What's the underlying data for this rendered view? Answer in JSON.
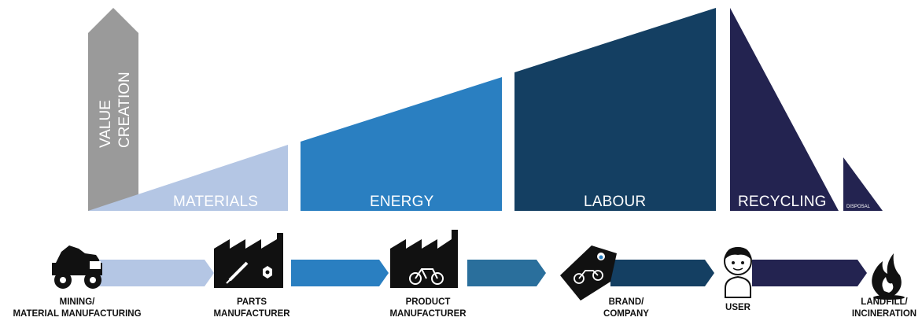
{
  "axis": {
    "line1": "VALUE",
    "line2": "CREATION",
    "color": "#9a9a9a"
  },
  "segments": [
    {
      "label": "MATERIALS",
      "color": "#b4c6e4"
    },
    {
      "label": "ENERGY",
      "color": "#2a7fc1"
    },
    {
      "label": "LABOUR",
      "color": "#143f62"
    },
    {
      "label": "RECYCLING",
      "color": "#232350"
    },
    {
      "label": "DISPOSAL",
      "color": "#232350"
    }
  ],
  "stages": [
    {
      "line1": "MINING/",
      "line2": "MATERIAL MANUFACTURING",
      "icon": "mining-truck-icon"
    },
    {
      "line1": "PARTS",
      "line2": "MANUFACTURER",
      "icon": "factory-parts-icon"
    },
    {
      "line1": "PRODUCT",
      "line2": "MANUFACTURER",
      "icon": "factory-bicycle-icon"
    },
    {
      "line1": "BRAND/",
      "line2": "COMPANY",
      "icon": "brand-tag-icon"
    },
    {
      "line1": "USER",
      "line2": "",
      "icon": "user-icon"
    },
    {
      "line1": "LANDFILL/",
      "line2": "INCINERATION",
      "icon": "fire-icon"
    }
  ],
  "connector_colors": [
    "#b4c6e4",
    "#2a7fc1",
    "#2a6f9c",
    "#143f62",
    "#232350"
  ]
}
